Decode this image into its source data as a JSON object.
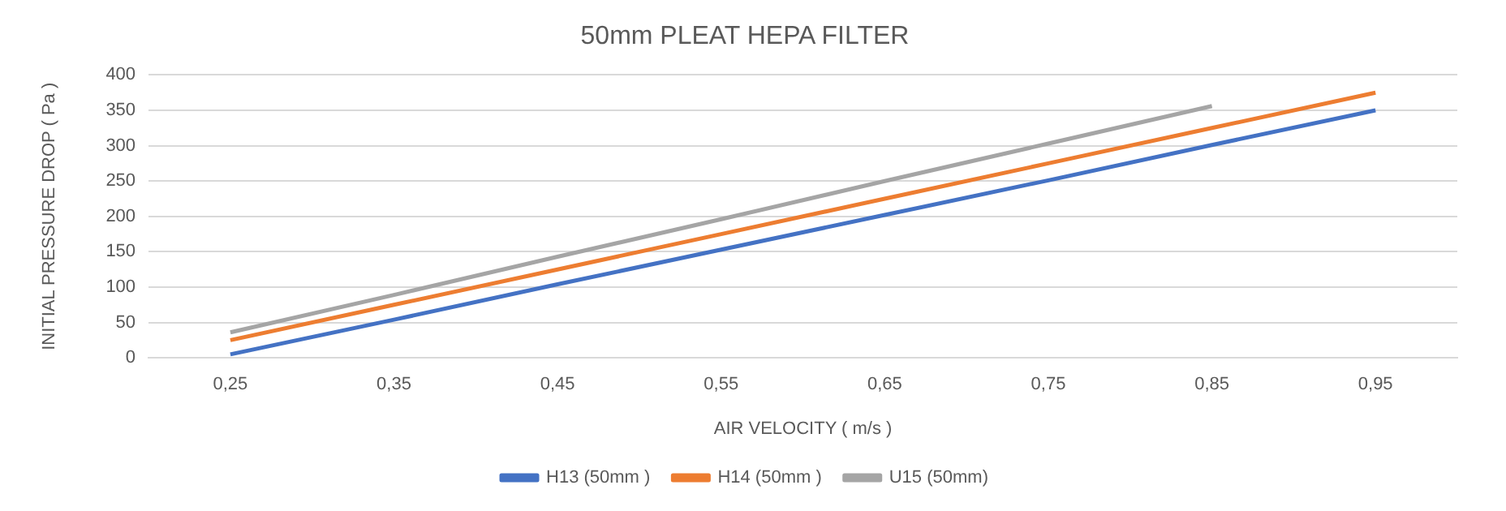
{
  "chart_data": {
    "type": "line",
    "title": "50mm PLEAT HEPA FILTER",
    "xlabel": "AIR VELOCITY ( m/s )",
    "ylabel": "INITIAL PRESSURE DROP ( Pa )",
    "categories": [
      "0,25",
      "0,35",
      "0,45",
      "0,55",
      "0,65",
      "0,75",
      "0,85",
      "0,95"
    ],
    "series": [
      {
        "name": "H13 (50mm )",
        "color": "#4472c4",
        "values": [
          5,
          54,
          104,
          153,
          202,
          251,
          301,
          350
        ]
      },
      {
        "name": "H14 (50mm )",
        "color": "#ed7d31",
        "values": [
          25,
          75,
          125,
          175,
          225,
          275,
          325,
          375
        ]
      },
      {
        "name": "U15 (50mm)",
        "color": "#a5a5a5",
        "values": [
          36,
          89,
          143,
          196,
          250,
          303,
          356,
          null
        ]
      }
    ],
    "ylim": [
      0,
      400
    ],
    "yticks": [
      0,
      50,
      100,
      150,
      200,
      250,
      300,
      350,
      400
    ],
    "grid": "y",
    "legend": "bottom",
    "marker": "none",
    "line_style": "solid"
  }
}
